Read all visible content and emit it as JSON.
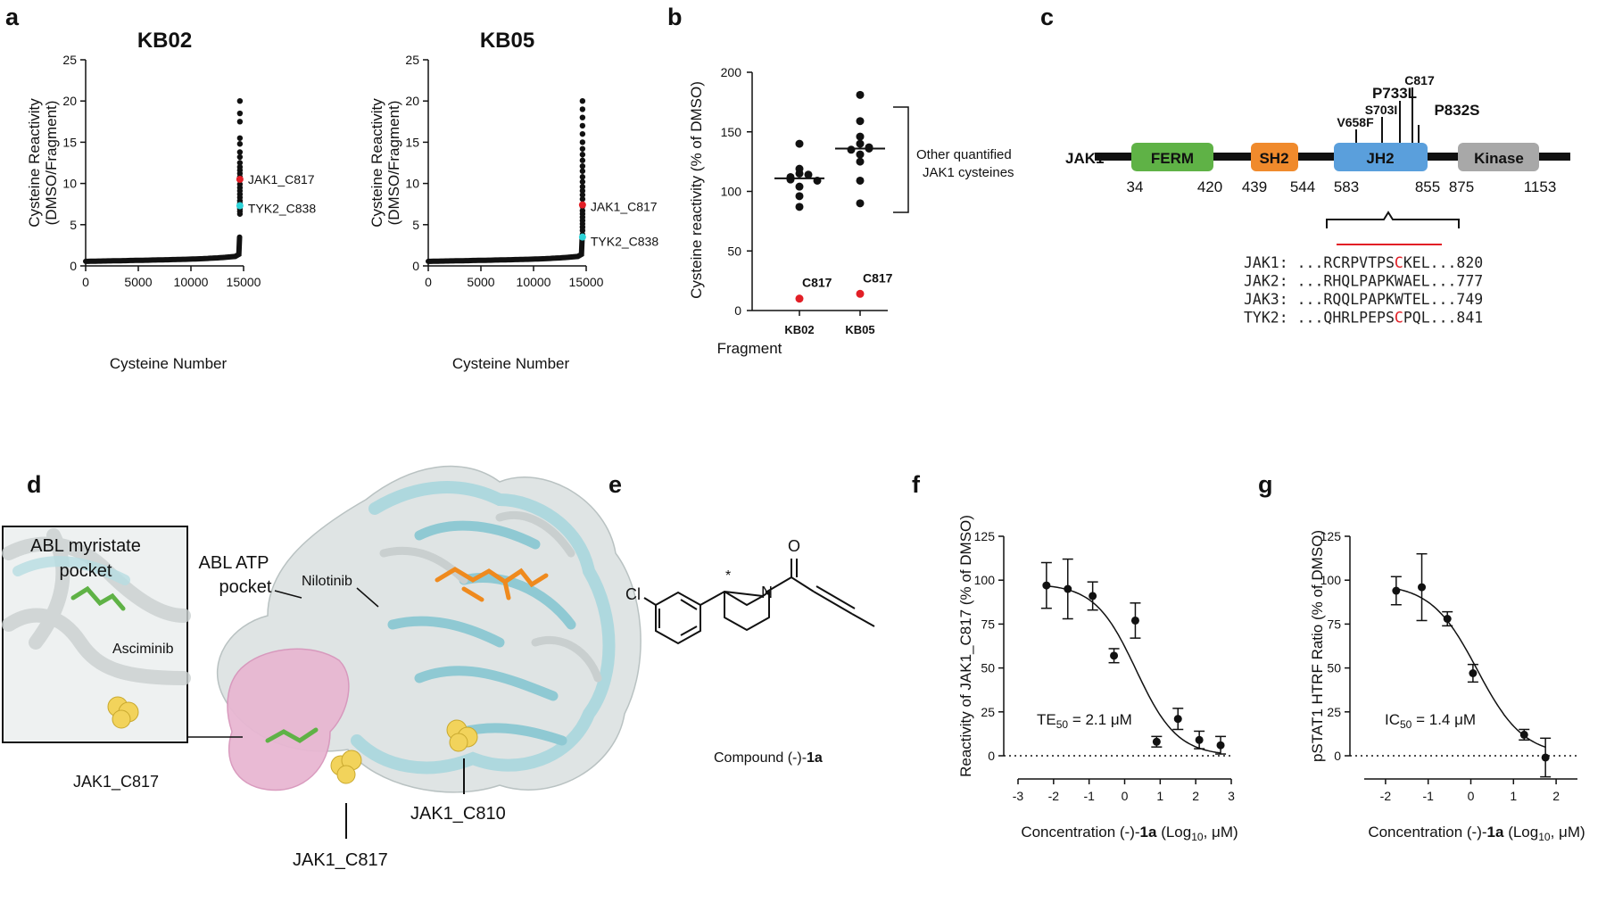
{
  "panels": {
    "a": "a",
    "b": "b",
    "c": "c",
    "d": "d",
    "e": "e",
    "f": "f",
    "g": "g"
  },
  "panel_a": {
    "chart_data": [
      {
        "type": "scatter",
        "title": "KB02",
        "xlabel": "Cysteine Number",
        "ylabel_1": "Cysteine Reactivity",
        "ylabel_2": "(DMSO/Fragment)",
        "xlim": [
          0,
          15000
        ],
        "ylim": [
          0,
          25
        ],
        "xticks": [
          "0",
          "5000",
          "10000",
          "15000"
        ],
        "yticks": [
          "0",
          "5",
          "10",
          "15",
          "20",
          "25"
        ],
        "top_values": [
          20,
          18.5,
          17.5,
          15.5,
          14.8,
          13.8,
          13.2,
          12.5,
          12.0,
          11.6,
          11.2,
          10.8,
          9.9,
          9.5,
          9.1,
          8.7,
          8.3,
          7.9,
          7.6,
          7.1,
          6.9,
          6.6,
          6.3
        ],
        "highlights": [
          {
            "label": "JAK1_C817",
            "value": 10.5,
            "color": "#e21f26"
          },
          {
            "label": "TYK2_C838",
            "value": 7.3,
            "color": "#2dd3d8"
          }
        ]
      },
      {
        "type": "scatter",
        "title": "KB05",
        "xlabel": "Cysteine Number",
        "ylabel_1": "Cysteine Reactivity",
        "ylabel_2": "(DMSO/Fragment)",
        "xlim": [
          0,
          15000
        ],
        "ylim": [
          0,
          25
        ],
        "xticks": [
          "0",
          "5000",
          "10000",
          "15000"
        ],
        "yticks": [
          "0",
          "5",
          "10",
          "15",
          "20",
          "25"
        ],
        "top_values": [
          20,
          19,
          18,
          17,
          16,
          15,
          14.2,
          13.5,
          12.8,
          12.1,
          11.5,
          10.8,
          10.2,
          9.6,
          9.1,
          8.6,
          8.1,
          7.2,
          6.7,
          6.3,
          5.9,
          5.5,
          5.1,
          4.7,
          4.3,
          3.8
        ],
        "highlights": [
          {
            "label": "JAK1_C817",
            "value": 7.4,
            "color": "#e21f26"
          },
          {
            "label": "TYK2_C838",
            "value": 3.5,
            "color": "#2dd3d8"
          }
        ]
      }
    ]
  },
  "panel_b": {
    "chart_data": {
      "type": "scatter",
      "categories": [
        "KB02",
        "KB05"
      ],
      "xlabel": "Fragment",
      "ylabel": "Cysteine reactivity (% of DMSO)",
      "ylim": [
        0,
        200
      ],
      "yticks": [
        "0",
        "50",
        "100",
        "150",
        "200"
      ],
      "series": [
        {
          "values": [
            [
              140,
              119,
              115,
              114,
              112,
              111,
              110,
              109,
              104,
              96,
              87
            ],
            [
              181,
              159,
              146,
              140,
              137,
              136,
              135,
              131,
              125,
              109,
              90
            ]
          ]
        }
      ],
      "medians": [
        111,
        136
      ],
      "c817": [
        {
          "label": "C817",
          "value": 10
        },
        {
          "label": "C817",
          "value": 14
        }
      ],
      "bracket_label_1": "Other quantified",
      "bracket_label_2": "JAK1 cysteines"
    }
  },
  "panel_c": {
    "protein": "JAK1",
    "domains": [
      {
        "name": "FERM",
        "color": "#5fb246"
      },
      {
        "name": "SH2",
        "color": "#f08a2c"
      },
      {
        "name": "JH2",
        "color": "#5a9fdc"
      },
      {
        "name": "Kinase",
        "color": "#a8a8a8"
      }
    ],
    "positions": [
      "34",
      "420",
      "439",
      "544",
      "583",
      "855",
      "875",
      "1153"
    ],
    "mutations": [
      {
        "label": "V658F",
        "color": "#b0202a"
      },
      {
        "label": "S703I",
        "color": "#b0202a"
      },
      {
        "label": "P733L",
        "color": "#2aa84a"
      },
      {
        "label": "C817",
        "color": "#111111"
      },
      {
        "label": "P832S",
        "color": "#2aa84a"
      }
    ],
    "alignment": [
      {
        "name": "JAK1:",
        "pre": "...RCRPVTPS",
        "mid": "C",
        "post": "KEL...820"
      },
      {
        "name": "JAK2:",
        "pre": "...RHQLPAPKWAEL...777",
        "mid": "",
        "post": ""
      },
      {
        "name": "JAK3:",
        "pre": "...RQQLPAPKWTEL...749",
        "mid": "",
        "post": ""
      },
      {
        "name": "TYK2:",
        "pre": "...QHRLPEPS",
        "mid": "C",
        "post": "PQL...841"
      }
    ]
  },
  "panel_d": {
    "labels": {
      "myristate_1": "ABL myristate",
      "myristate_2": "pocket",
      "atp_1": "ABL ATP",
      "atp_2": "pocket",
      "nilotinib": "Nilotinib",
      "asciminib": "Asciminib",
      "inset_c817": "JAK1_C817",
      "c817": "JAK1_C817",
      "c810": "JAK1_C810"
    }
  },
  "panel_e": {
    "caption_pre": "Compound (-)-",
    "caption_bold": "1a",
    "atom_cl": "Cl",
    "atom_n": "N",
    "atom_o": "O",
    "stereo": "*"
  },
  "panel_f": {
    "chart_data": {
      "type": "scatter",
      "ylabel": "Reactivity of JAK1_C817 (% of DMSO)",
      "xlabel_pre": "Concentration (-)-",
      "xlabel_bold": "1a",
      "xlabel_post": "(Log",
      "xlabel_sub": "10",
      "xlabel_end": ", μM)",
      "xlim": [
        -3,
        3
      ],
      "ylim": [
        0,
        125
      ],
      "xticks": [
        "-3",
        "-2",
        "-1",
        "0",
        "1",
        "2",
        "3"
      ],
      "yticks": [
        "0",
        "25",
        "50",
        "75",
        "100",
        "125"
      ],
      "x": [
        -2.2,
        -1.6,
        -0.9,
        -0.3,
        0.3,
        0.9,
        1.5,
        2.1,
        2.7
      ],
      "y": [
        97,
        95,
        91,
        57,
        77,
        8,
        21,
        9,
        6
      ],
      "err": [
        13,
        17,
        8,
        4,
        10,
        3,
        6,
        5,
        5
      ],
      "fit": {
        "top": 98,
        "bottom": 0,
        "log_ec50": 0.32,
        "hill": -0.75
      },
      "annotation_pre": "TE",
      "annotation_sub": "50",
      "annotation_post": " = 2.1 μM"
    }
  },
  "panel_g": {
    "chart_data": {
      "type": "scatter",
      "ylabel": "pSTAT1 HTRF Ratio (% of DMSO)",
      "xlabel_pre": "Concentration (-)-",
      "xlabel_bold": "1a",
      "xlabel_post": "(Log",
      "xlabel_sub": "10",
      "xlabel_end": ", μM)",
      "xlim": [
        -2.5,
        2.5
      ],
      "ylim": [
        0,
        125
      ],
      "xticks": [
        "-2",
        "-1",
        "0",
        "1",
        "2"
      ],
      "yticks": [
        "0",
        "25",
        "50",
        "75",
        "100",
        "125"
      ],
      "x": [
        -1.75,
        -1.15,
        -0.55,
        0.05,
        1.25,
        1.75
      ],
      "y": [
        94,
        96,
        78,
        47,
        12,
        -1
      ],
      "err": [
        8,
        19,
        4,
        5,
        3,
        11
      ],
      "fit": {
        "top": 98,
        "bottom": 0,
        "log_ec50": 0.15,
        "hill": -0.8
      },
      "annotation_pre": "IC",
      "annotation_sub": "50",
      "annotation_post": " = 1.4 μM"
    }
  }
}
